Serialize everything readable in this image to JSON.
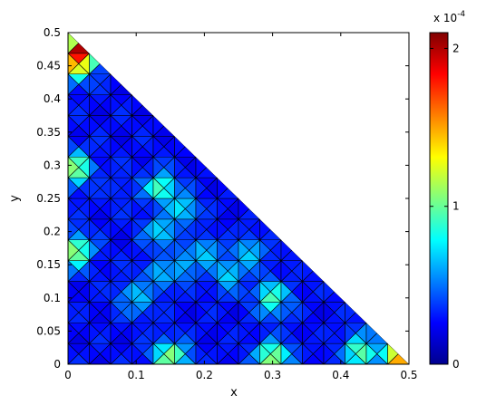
{
  "chart_data": {
    "type": "heatmap",
    "title": "",
    "xlabel": "x",
    "ylabel": "y",
    "xlim": [
      0,
      0.5
    ],
    "ylim": [
      0,
      0.5
    ],
    "x_ticks": [
      "0",
      "0.1",
      "0.2",
      "0.3",
      "0.4",
      "0.5"
    ],
    "y_ticks": [
      "0",
      "0.05",
      "0.1",
      "0.15",
      "0.2",
      "0.25",
      "0.3",
      "0.35",
      "0.4",
      "0.45",
      "0.5"
    ],
    "domain": "triangle with vertices (0,0), (0.5,0), (0,0.5)",
    "colorbar": {
      "colormap": "jet",
      "range": [
        0,
        2.1
      ],
      "tick_labels": [
        "0",
        "1",
        "2"
      ],
      "exponent_label": "x 10",
      "exponent_power": "-4"
    },
    "cells": [
      {
        "x": 0.135,
        "y": 0.265,
        "value": 0.95
      },
      {
        "x": 0.165,
        "y": 0.235,
        "value": 0.75
      },
      {
        "x": 0.135,
        "y": 0.2,
        "value": 0.72
      },
      {
        "x": 0.2,
        "y": 0.165,
        "value": 0.7
      },
      {
        "x": 0.235,
        "y": 0.135,
        "value": 0.72
      },
      {
        "x": 0.165,
        "y": 0.15,
        "value": 0.65
      },
      {
        "x": 0.135,
        "y": 0.135,
        "value": 0.65
      },
      {
        "x": 0.265,
        "y": 0.165,
        "value": 0.7
      },
      {
        "x": 0.1,
        "y": 0.1,
        "value": 0.7
      },
      {
        "x": 0.3,
        "y": 0.1,
        "value": 0.95
      },
      {
        "x": 0.07,
        "y": 0.265,
        "value": 0.35
      },
      {
        "x": 0.02,
        "y": 0.47,
        "value": 2.1
      },
      {
        "x": 0.01,
        "y": 0.455,
        "value": 1.5
      },
      {
        "x": 0.485,
        "y": 0.008,
        "value": 1.5
      },
      {
        "x": 0.01,
        "y": 0.295,
        "value": 1.1
      },
      {
        "x": 0.01,
        "y": 0.17,
        "value": 1.1
      },
      {
        "x": 0.15,
        "y": 0.01,
        "value": 1.1
      },
      {
        "x": 0.3,
        "y": 0.01,
        "value": 1.1
      },
      {
        "x": 0.43,
        "y": 0.02,
        "value": 1.0
      }
    ]
  }
}
